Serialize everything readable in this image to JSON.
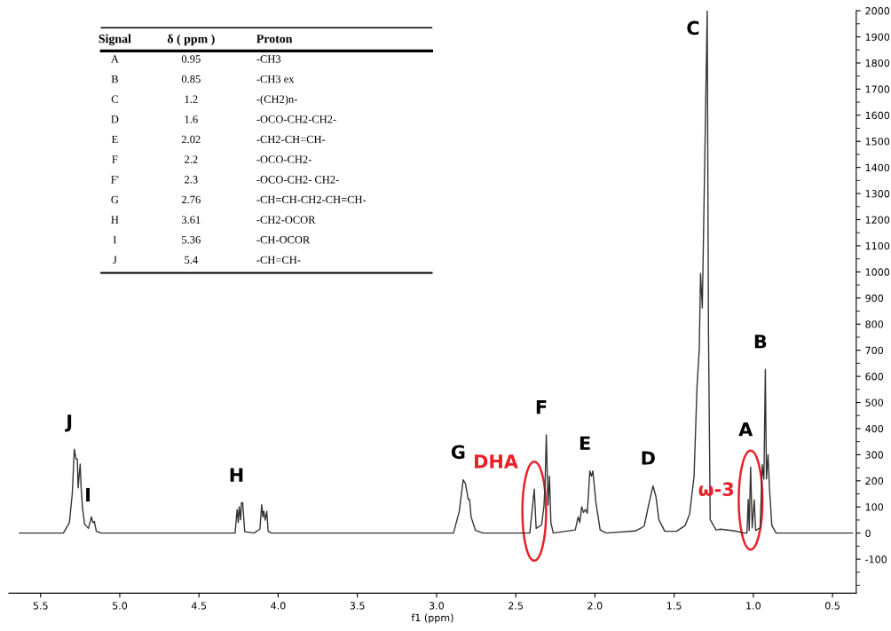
{
  "chart_data": {
    "type": "line",
    "xlabel": "f1 (ppm)",
    "x": [
      5.633,
      5.356,
      5.318,
      5.3,
      5.287,
      5.276,
      5.268,
      5.263,
      5.257,
      5.25,
      5.244,
      5.235,
      5.222,
      5.198,
      5.179,
      5.17,
      5.161,
      5.148,
      5.117,
      4.272,
      4.259,
      4.252,
      4.246,
      4.237,
      4.232,
      4.224,
      4.211,
      4.152,
      4.115,
      4.104,
      4.096,
      4.091,
      4.082,
      4.072,
      4.063,
      4.044,
      2.893,
      2.856,
      2.832,
      2.818,
      2.8,
      2.791,
      2.782,
      2.754,
      2.707,
      2.411,
      2.383,
      2.371,
      2.337,
      2.322,
      2.315,
      2.307,
      2.296,
      2.287,
      2.278,
      2.263,
      2.124,
      2.106,
      2.096,
      2.083,
      2.072,
      2.06,
      2.048,
      2.032,
      2.022,
      2.013,
      1.994,
      1.967,
      1.929,
      1.744,
      1.689,
      1.661,
      1.633,
      1.615,
      1.596,
      1.559,
      1.485,
      1.43,
      1.402,
      1.374,
      1.356,
      1.341,
      1.333,
      1.322,
      1.291,
      1.283,
      1.272,
      1.235,
      1.207,
      1.117,
      1.059,
      1.04,
      1.032,
      1.026,
      1.017,
      1.007,
      0.994,
      0.985,
      0.957,
      0.943,
      0.933,
      0.924,
      0.917,
      0.907,
      0.898,
      0.883,
      0.856,
      0.374
    ],
    "series": [
      {
        "color": "#333333",
        "values": [
          0,
          0,
          40,
          151,
          321,
          284,
          284,
          173,
          218,
          264,
          173,
          95,
          34,
          18,
          62,
          40,
          45,
          7,
          0,
          0,
          90,
          40,
          101,
          51,
          116,
          116,
          5,
          0,
          15,
          109,
          62,
          84,
          50,
          83,
          7,
          0,
          0,
          84,
          204,
          190,
          129,
          129,
          62,
          10,
          0,
          0,
          168,
          18,
          31,
          101,
          184,
          376,
          107,
          218,
          40,
          0,
          12,
          62,
          40,
          101,
          79,
          90,
          76,
          238,
          218,
          238,
          118,
          12,
          0,
          8,
          26,
          107,
          181,
          140,
          51,
          7,
          7,
          29,
          73,
          218,
          551,
          707,
          995,
          862,
          2000,
          773,
          51,
          12,
          15,
          8,
          0,
          0,
          129,
          10,
          253,
          20,
          127,
          10,
          20,
          262,
          207,
          627,
          207,
          301,
          173,
          29,
          0,
          0
        ]
      }
    ],
    "xlim": [
      5.7,
      0.35
    ],
    "xticks": [
      5.5,
      {
        "value": 5,
        "label": "5.0"
      },
      4.5,
      {
        "value": 4,
        "label": "4.0"
      },
      3.5,
      {
        "value": 3,
        "label": "3.0"
      },
      2.5,
      {
        "value": 2,
        "label": "2.0"
      },
      1.5,
      {
        "value": 1,
        "label": "1.0"
      },
      0.5
    ],
    "ylim": [
      -230,
      2000
    ],
    "yticks": [
      -100,
      0,
      100,
      200,
      300,
      400,
      500,
      600,
      700,
      800,
      900,
      1000,
      1100,
      1200,
      1300,
      1400,
      1500,
      1600,
      1700,
      1800,
      1900,
      2000
    ],
    "marker": "none",
    "line_style": "solid",
    "grid": false,
    "legend": false,
    "annotations": [
      {
        "text": "J",
        "x": 5.287,
        "y": 321
      },
      {
        "text": "I",
        "x": 5.17,
        "y": 40
      },
      {
        "text": "H",
        "x": 4.232,
        "y": 116
      },
      {
        "text": "G",
        "x": 2.832,
        "y": 204
      },
      {
        "text": "DHA",
        "x": 2.383,
        "y": 168
      },
      {
        "text": "F",
        "x": 2.307,
        "y": 376
      },
      {
        "text": "E",
        "x": 2.032,
        "y": 238
      },
      {
        "text": "D",
        "x": 1.633,
        "y": 181
      },
      {
        "text": "C",
        "x": 1.291,
        "y": 2000
      },
      {
        "text": "ω-3",
        "x": 1.017,
        "y": 253
      },
      {
        "text": "A",
        "x": 1.017,
        "y": 253
      },
      {
        "text": "B",
        "x": 0.924,
        "y": 627
      },
      "Signal",
      "δ ( ppm )",
      "Proton",
      "A",
      "0.95",
      "-CH3",
      "B",
      "0.85",
      "-CH3 ex",
      "C",
      "1.2",
      "-(CH2)n-",
      "D",
      "1.6",
      "-OCO-CH2-CH2-",
      "E",
      "2.02",
      "-CH2-CH=CH-",
      "F",
      "2.2",
      "-OCO-CH2-",
      "F'",
      "2.3",
      "-OCO-CH2- CH2-",
      "G",
      "2.76",
      "-CH=CH-CH2-CH=CH-",
      "H",
      "3.61",
      "-CH2-OCOR",
      "I",
      "5.36",
      "-CH-OCOR",
      "J",
      "5.4",
      "-CH=CH-"
    ]
  }
}
